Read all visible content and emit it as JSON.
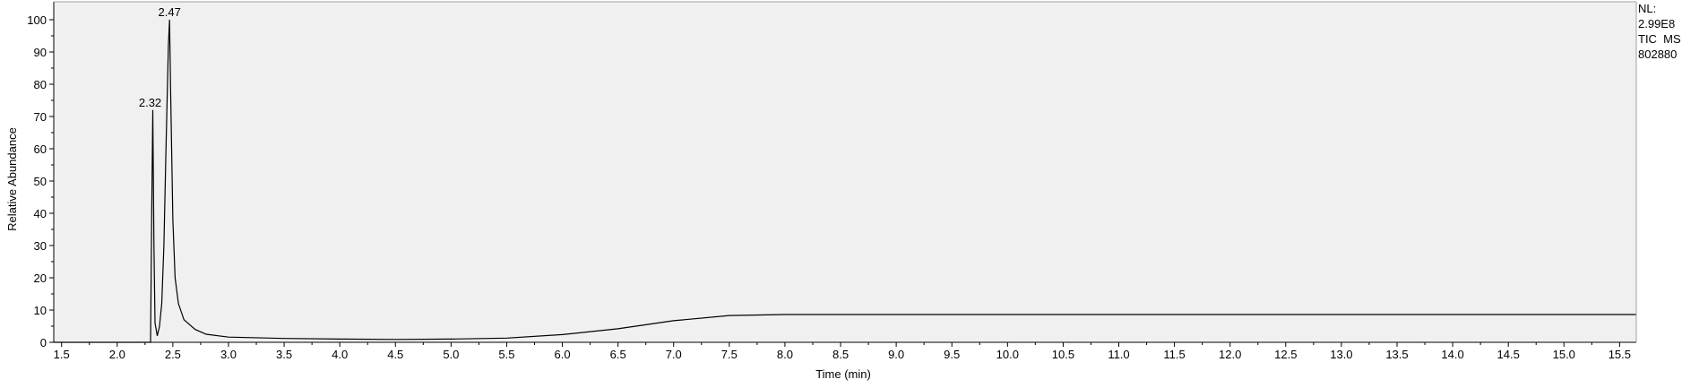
{
  "chart_data": {
    "type": "line",
    "xlabel": "Time (min)",
    "ylabel": "Relative Abundance",
    "xlim": [
      1.43,
      15.65
    ],
    "ylim": [
      0,
      100
    ],
    "x_ticks": [
      "1.5",
      "2.0",
      "2.5",
      "3.0",
      "3.5",
      "4.0",
      "4.5",
      "5.0",
      "5.5",
      "6.0",
      "6.5",
      "7.0",
      "7.5",
      "8.0",
      "8.5",
      "9.0",
      "9.5",
      "10.0",
      "10.5",
      "11.0",
      "11.5",
      "12.0",
      "12.5",
      "13.0",
      "13.5",
      "14.0",
      "14.5",
      "15.0",
      "15.5"
    ],
    "y_ticks": [
      "0",
      "10",
      "20",
      "30",
      "40",
      "50",
      "60",
      "70",
      "80",
      "90",
      "100"
    ],
    "grid": false,
    "peak_labels": [
      {
        "x": 2.32,
        "y": 72,
        "label": "2.32"
      },
      {
        "x": 2.47,
        "y": 100,
        "label": "2.47"
      }
    ],
    "info": [
      "NL:",
      "2.99E8",
      "TIC  MS",
      "802880"
    ],
    "series": [
      {
        "x": [
          1.43,
          2.3,
          2.31,
          2.32,
          2.33,
          2.34,
          2.36,
          2.38,
          2.4,
          2.42,
          2.44,
          2.46,
          2.47,
          2.48,
          2.5,
          2.52,
          2.55,
          2.6,
          2.7,
          2.8,
          3.0,
          3.5,
          4.0,
          4.5,
          5.0,
          5.5,
          6.0,
          6.5,
          7.0,
          7.5,
          8.0,
          9.0,
          10.0,
          11.0,
          12.0,
          13.0,
          14.0,
          15.0,
          15.65
        ],
        "y": [
          0,
          0,
          40,
          72,
          30,
          6,
          2,
          5,
          12,
          30,
          62,
          92,
          100,
          78,
          38,
          20,
          12,
          7,
          4,
          2.5,
          1.6,
          1.2,
          1.0,
          0.9,
          1.0,
          1.3,
          2.4,
          4.2,
          6.7,
          8.3,
          8.6,
          8.6,
          8.6,
          8.6,
          8.6,
          8.6,
          8.6,
          8.6,
          8.6
        ]
      }
    ]
  }
}
